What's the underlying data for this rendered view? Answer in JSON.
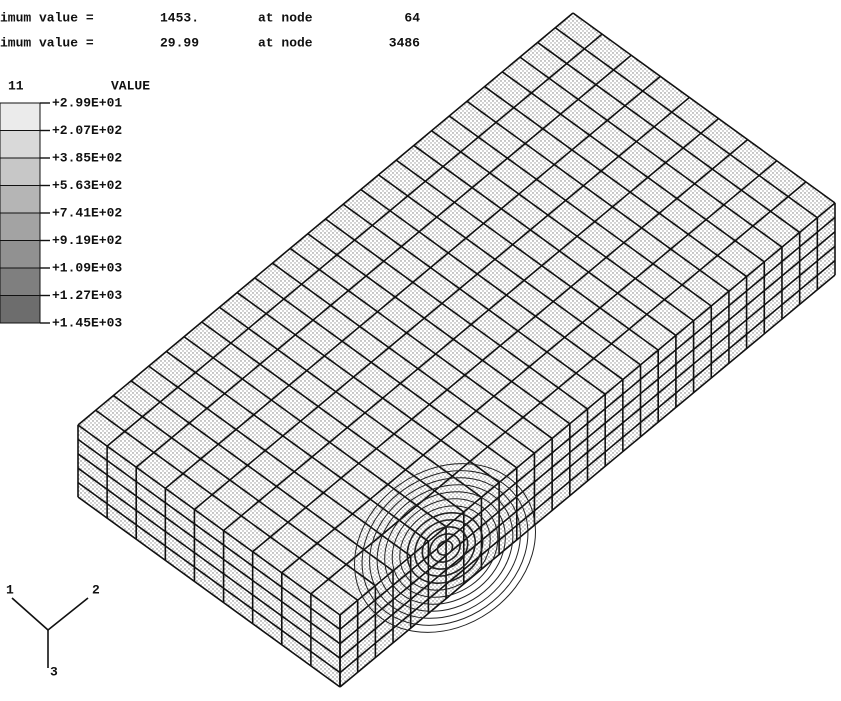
{
  "header": {
    "rows": [
      {
        "label": "imum value =",
        "value": "1453.",
        "node_label": "at node",
        "node": "64"
      },
      {
        "label": "imum value =",
        "value": "29.99",
        "node_label": "at node",
        "node": "3486"
      }
    ]
  },
  "legend": {
    "title": "11",
    "column": "VALUE",
    "levels": [
      "+2.99E+01",
      "+2.07E+02",
      "+3.85E+02",
      "+5.63E+02",
      "+7.41E+02",
      "+9.19E+02",
      "+1.09E+03",
      "+1.27E+03",
      "+1.45E+03"
    ]
  },
  "triad": {
    "axes": [
      "1",
      "2",
      "3"
    ]
  }
}
